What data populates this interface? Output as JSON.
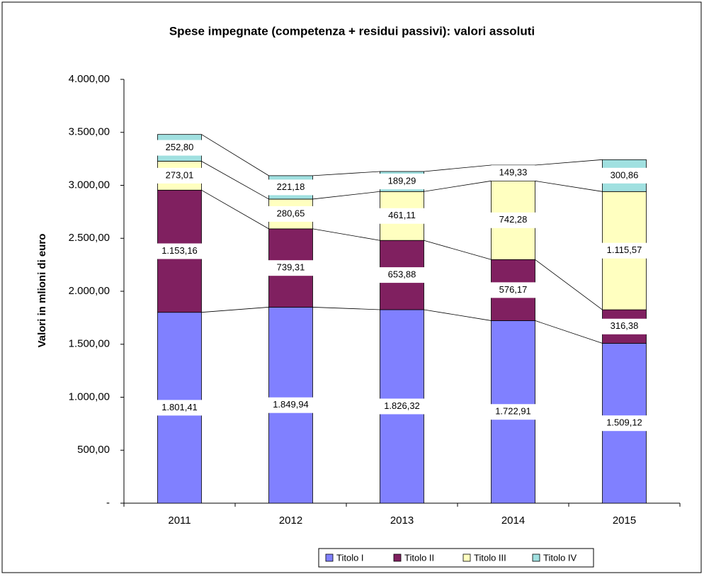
{
  "chart_data": {
    "type": "stacked_bar",
    "title": "Spese impegnate (competenza + residui passivi): valori assoluti",
    "y_label": "Valori in mlioni di euro",
    "categories": [
      "2011",
      "2012",
      "2013",
      "2014",
      "2015"
    ],
    "series": [
      {
        "name": "Titolo I",
        "color": "#8080ff",
        "values": [
          1801.41,
          1849.94,
          1826.32,
          1722.91,
          1509.12
        ],
        "value_labels": [
          "1.801,41",
          "1.849,94",
          "1.826,32",
          "1.722,91",
          "1.509,12"
        ]
      },
      {
        "name": "Titolo II",
        "color": "#802060",
        "values": [
          1153.16,
          739.31,
          653.88,
          576.17,
          316.38
        ],
        "value_labels": [
          "1.153,16",
          "739,31",
          "653,88",
          "576,17",
          "316,38"
        ]
      },
      {
        "name": "Titolo III",
        "color": "#ffffc0",
        "values": [
          273.01,
          280.65,
          461.11,
          742.28,
          1115.57
        ],
        "value_labels": [
          "273,01",
          "280,65",
          "461,11",
          "742,28",
          "1.115,57"
        ]
      },
      {
        "name": "Titolo IV",
        "color": "#a0e0e0",
        "values": [
          252.8,
          221.18,
          189.29,
          149.33,
          300.86
        ],
        "value_labels": [
          "252,80",
          "221,18",
          "189,29",
          "149,33",
          "300,86"
        ]
      }
    ],
    "ylim": [
      0,
      4000
    ],
    "yticks": [
      {
        "value": 0,
        "label": "-"
      },
      {
        "value": 500,
        "label": "500,00"
      },
      {
        "value": 1000,
        "label": "1.000,00"
      },
      {
        "value": 1500,
        "label": "1.500,00"
      },
      {
        "value": 2000,
        "label": "2.000,00"
      },
      {
        "value": 2500,
        "label": "2.500,00"
      },
      {
        "value": 3000,
        "label": "3.000,00"
      },
      {
        "value": 3500,
        "label": "3.500,00"
      },
      {
        "value": 4000,
        "label": "4.000,00"
      }
    ],
    "legend": "bottom"
  }
}
